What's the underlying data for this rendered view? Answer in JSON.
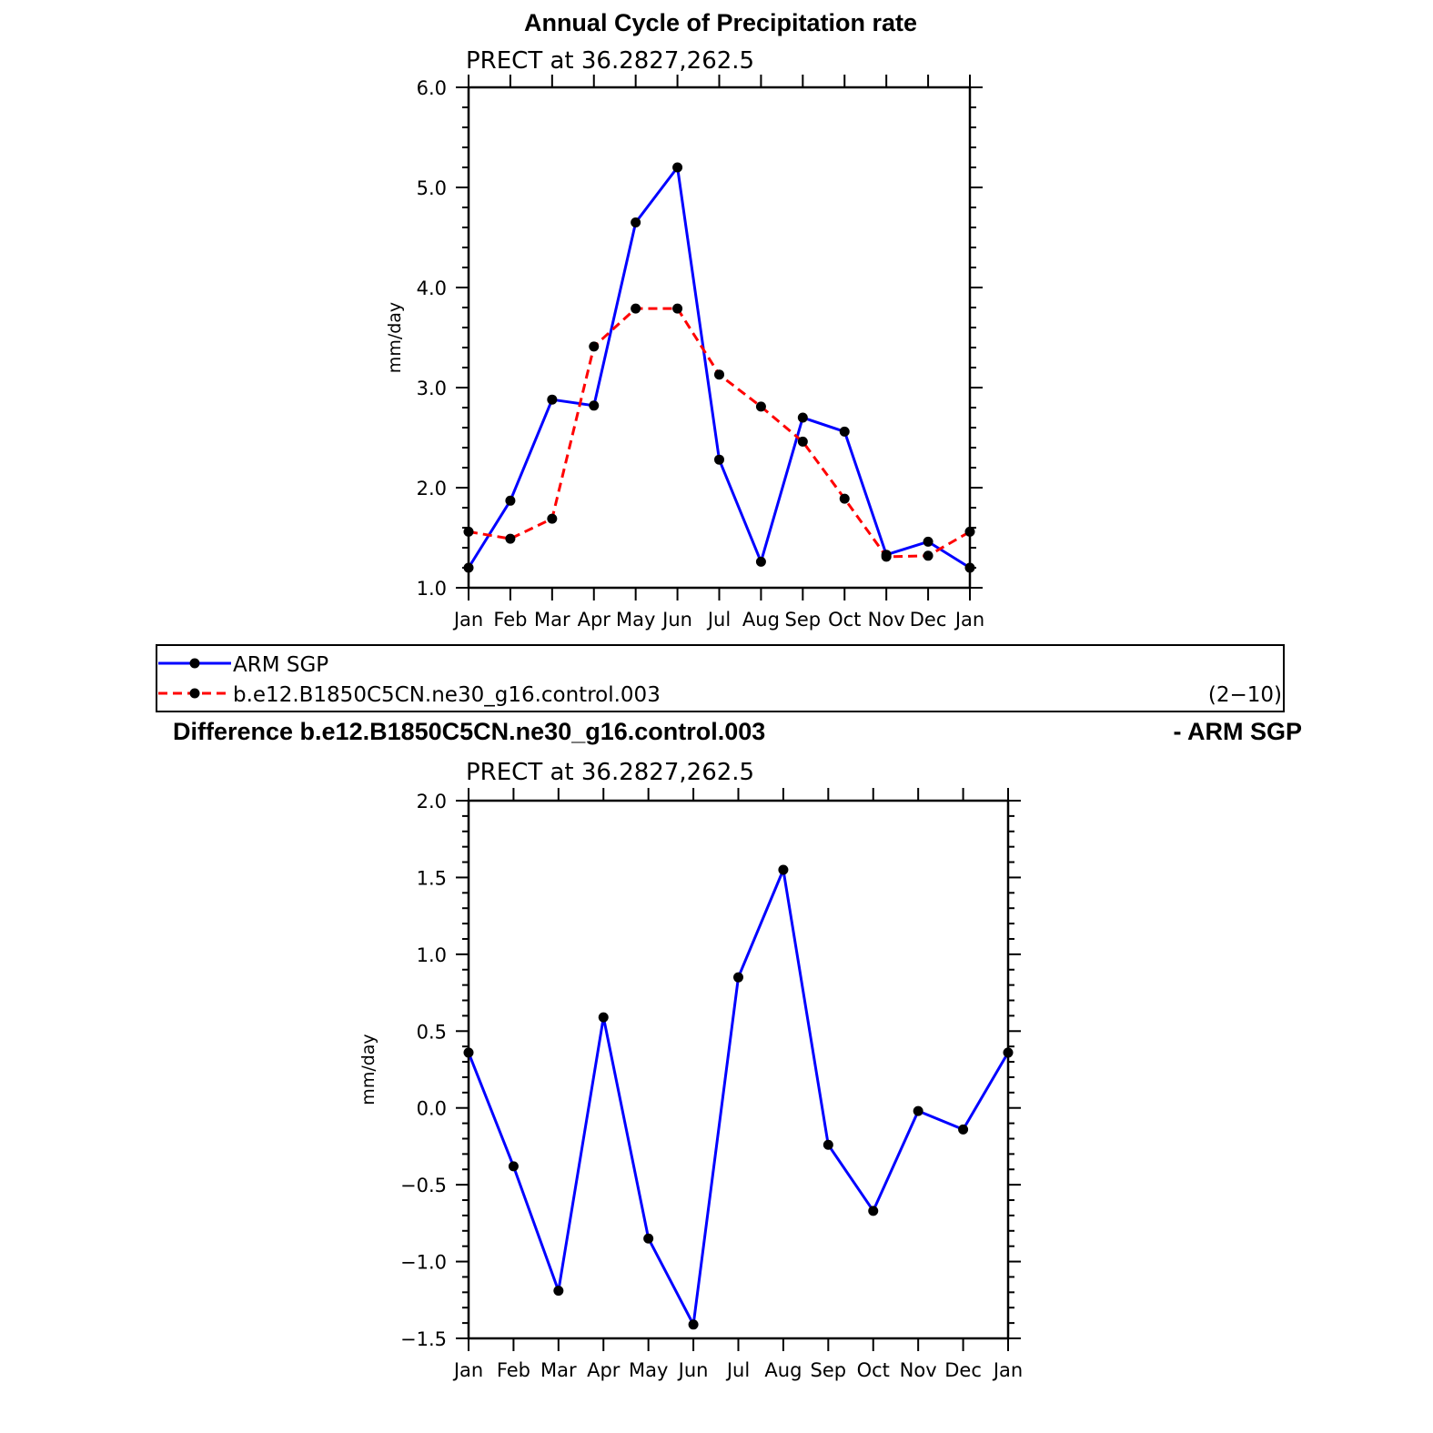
{
  "figure": {
    "legend": {
      "entries": [
        {
          "label": "ARM SGP",
          "color": "#0000ff",
          "dash": "solid"
        },
        {
          "label": "b.e12.B1850C5CN.ne30_g16.control.003",
          "color": "#ff0000",
          "dash": "dashed"
        }
      ],
      "note": "(2−10)"
    }
  },
  "chart_data": [
    {
      "type": "line",
      "title": "Annual Cycle of Precipitation rate",
      "subtitle": "PRECT at 36.2827,262.5",
      "xlabel": "",
      "ylabel": "mm/day",
      "ylim": [
        1.0,
        6.0
      ],
      "yticks": [
        1.0,
        2.0,
        3.0,
        4.0,
        5.0,
        6.0
      ],
      "ytick_labels": [
        "1.0",
        "2.0",
        "3.0",
        "4.0",
        "5.0",
        "6.0"
      ],
      "categories": [
        "Jan",
        "Feb",
        "Mar",
        "Apr",
        "May",
        "Jun",
        "Jul",
        "Aug",
        "Sep",
        "Oct",
        "Nov",
        "Dec",
        "Jan"
      ],
      "grid": false,
      "legend_position": "below",
      "series": [
        {
          "name": "ARM SGP",
          "color": "#0000ff",
          "dash": "solid",
          "values": [
            1.2,
            1.87,
            2.88,
            2.82,
            4.65,
            5.2,
            2.28,
            1.26,
            2.7,
            2.56,
            1.33,
            1.46,
            1.2
          ]
        },
        {
          "name": "b.e12.B1850C5CN.ne30_g16.control.003",
          "color": "#ff0000",
          "dash": "dashed",
          "values": [
            1.56,
            1.49,
            1.69,
            3.41,
            3.79,
            3.79,
            3.13,
            2.81,
            2.46,
            1.89,
            1.31,
            1.32,
            1.56
          ]
        }
      ]
    },
    {
      "type": "line",
      "title_left": "Difference b.e12.B1850C5CN.ne30_g16.control.003",
      "title_right": "- ARM SGP",
      "subtitle": "PRECT at 36.2827,262.5",
      "xlabel": "",
      "ylabel": "mm/day",
      "ylim": [
        -1.5,
        2.0
      ],
      "yticks": [
        -1.5,
        -1.0,
        -0.5,
        0.0,
        0.5,
        1.0,
        1.5,
        2.0
      ],
      "ytick_labels": [
        "−1.5",
        "−1.0",
        "−0.5",
        "0.0",
        "0.5",
        "1.0",
        "1.5",
        "2.0"
      ],
      "categories": [
        "Jan",
        "Feb",
        "Mar",
        "Apr",
        "May",
        "Jun",
        "Jul",
        "Aug",
        "Sep",
        "Oct",
        "Nov",
        "Dec",
        "Jan"
      ],
      "grid": false,
      "series": [
        {
          "color": "#0000ff",
          "dash": "solid",
          "values": [
            0.36,
            -0.38,
            -1.19,
            0.59,
            -0.85,
            -1.41,
            0.85,
            1.55,
            -0.24,
            -0.67,
            -0.02,
            -0.14,
            0.36
          ]
        }
      ]
    }
  ]
}
